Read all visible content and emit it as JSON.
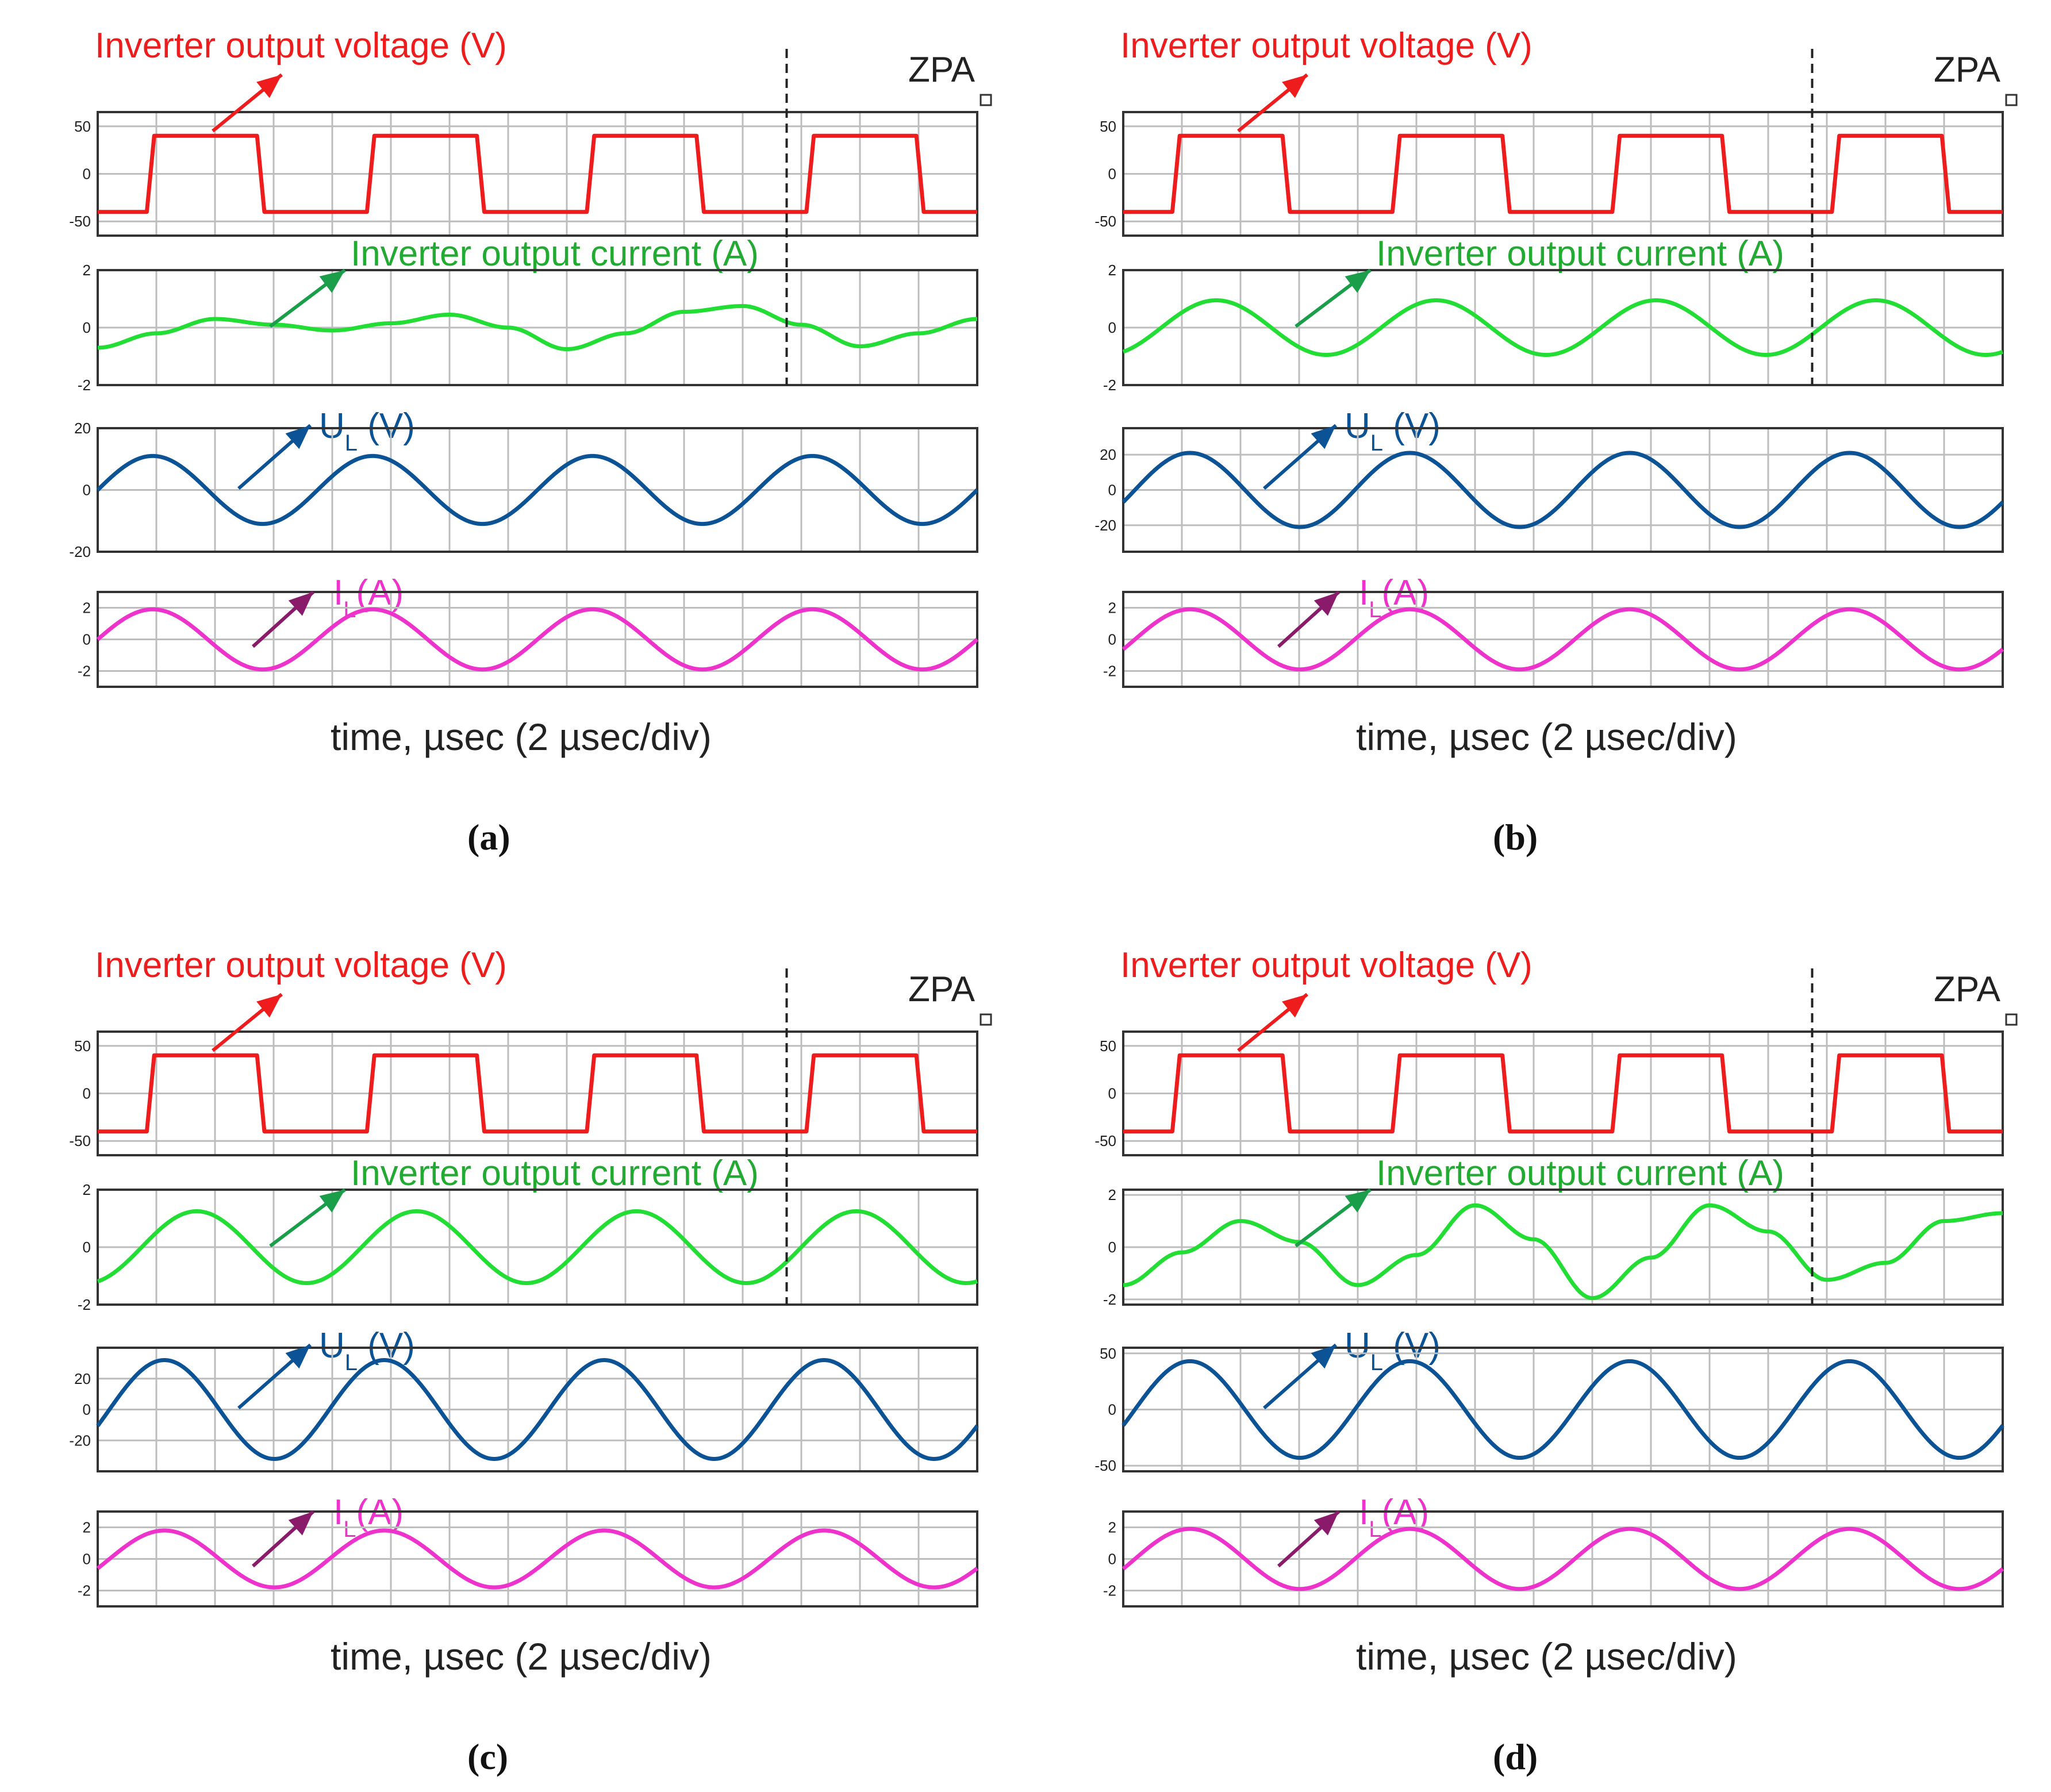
{
  "figure": {
    "panels": [
      {
        "caption": "(a)",
        "voltage_label": "Inverter output voltage (V)",
        "current_label": "Inverter output current (A)",
        "ul_label_main": "U",
        "ul_label_sub": "L",
        "ul_label_unit": " (V)",
        "il_label_main": "I",
        "il_label_sub": "L",
        "il_label_unit": "(A)",
        "zpa_label": "ZPA",
        "x_label": "time, µsec (2 µsec/div)"
      },
      {
        "caption": "(b)",
        "voltage_label": "Inverter output voltage (V)",
        "current_label": "Inverter output current (A)",
        "ul_label_main": "U",
        "ul_label_sub": "L",
        "ul_label_unit": " (V)",
        "il_label_main": "I",
        "il_label_sub": "L",
        "il_label_unit": "(A)",
        "zpa_label": "ZPA",
        "x_label": "time, µsec (2 µsec/div)"
      },
      {
        "caption": "(c)",
        "voltage_label": "Inverter output voltage (V)",
        "current_label": "Inverter output current (A)",
        "ul_label_main": "U",
        "ul_label_sub": "L",
        "ul_label_unit": " (V)",
        "il_label_main": "I",
        "il_label_sub": "L",
        "il_label_unit": "(A)",
        "zpa_label": "ZPA",
        "x_label": "time, µsec (2 µsec/div)"
      },
      {
        "caption": "(d)",
        "voltage_label": "Inverter output voltage (V)",
        "current_label": "Inverter output current (A)",
        "ul_label_main": "U",
        "ul_label_sub": "L",
        "ul_label_unit": " (V)",
        "il_label_main": "I",
        "il_label_sub": "L",
        "il_label_unit": "(A)",
        "zpa_label": "ZPA",
        "x_label": "time, µsec (2 µsec/div)"
      }
    ]
  },
  "chart_data": [
    {
      "type": "line",
      "panel": "(a)",
      "title": "",
      "xlabel": "time, µsec (2 µsec/div)",
      "x_range_us": [
        0,
        30
      ],
      "x_division_us": 2,
      "zpa_time_us": 23.5,
      "colors": {
        "voltage": "#ee1c1c",
        "current": "#22dd33",
        "ul": "#0b5394",
        "il": "#ee33cc"
      },
      "series": [
        {
          "name": "Inverter output voltage (V)",
          "kind": "square",
          "ylim": [
            -65,
            65
          ],
          "yticks": [
            -50,
            0,
            50
          ],
          "amplitude": 40,
          "period_us": 7.5,
          "high_start_us": 1.8,
          "duty": 0.5
        },
        {
          "name": "Inverter output current (A)",
          "kind": "sine",
          "ylim": [
            -2,
            2
          ],
          "yticks": [
            -2,
            0,
            2
          ],
          "points_x": [
            0,
            2,
            4,
            6,
            8,
            10,
            12,
            14,
            16,
            18,
            20,
            22,
            24,
            26,
            28,
            30
          ],
          "points_y": [
            -0.7,
            -0.2,
            0.3,
            0.1,
            -0.1,
            0.15,
            0.45,
            0.0,
            -0.75,
            -0.2,
            0.55,
            0.75,
            0.1,
            -0.65,
            -0.2,
            0.3
          ]
        },
        {
          "name": "U_L (V)",
          "kind": "sine",
          "ylim": [
            -20,
            20
          ],
          "yticks": [
            -20,
            0,
            20
          ],
          "amplitude": 11,
          "period_us": 7.5,
          "phase_zero_us": 0.0
        },
        {
          "name": "I_L (A)",
          "kind": "sine",
          "ylim": [
            -3,
            3
          ],
          "yticks": [
            -2,
            0,
            2
          ],
          "amplitude": 1.9,
          "period_us": 7.5,
          "phase_zero_us": 0.0
        }
      ]
    },
    {
      "type": "line",
      "panel": "(b)",
      "title": "",
      "xlabel": "time, µsec (2 µsec/div)",
      "x_range_us": [
        0,
        30
      ],
      "x_division_us": 2,
      "zpa_time_us": 23.5,
      "colors": {
        "voltage": "#ee1c1c",
        "current": "#22dd33",
        "ul": "#0b5394",
        "il": "#ee33cc"
      },
      "series": [
        {
          "name": "Inverter output voltage (V)",
          "kind": "square",
          "ylim": [
            -65,
            65
          ],
          "yticks": [
            -50,
            0,
            50
          ],
          "amplitude": 40,
          "period_us": 7.5,
          "high_start_us": 1.8,
          "duty": 0.5
        },
        {
          "name": "Inverter output current (A)",
          "kind": "sine",
          "ylim": [
            -2,
            2
          ],
          "yticks": [
            -2,
            0,
            2
          ],
          "amplitude": 0.95,
          "period_us": 7.5,
          "phase_zero_us": 1.3
        },
        {
          "name": "U_L (V)",
          "kind": "sine",
          "ylim": [
            -35,
            35
          ],
          "yticks": [
            -20,
            0,
            20
          ],
          "amplitude": 21,
          "period_us": 7.5,
          "phase_zero_us": 0.4
        },
        {
          "name": "I_L (A)",
          "kind": "sine",
          "ylim": [
            -3,
            3
          ],
          "yticks": [
            -2,
            0,
            2
          ],
          "amplitude": 1.9,
          "period_us": 7.5,
          "phase_zero_us": 0.4
        }
      ]
    },
    {
      "type": "line",
      "panel": "(c)",
      "title": "",
      "xlabel": "time, µsec (2 µsec/div)",
      "x_range_us": [
        0,
        30
      ],
      "x_division_us": 2,
      "zpa_time_us": 23.5,
      "colors": {
        "voltage": "#ee1c1c",
        "current": "#22dd33",
        "ul": "#0b5394",
        "il": "#ee33cc"
      },
      "series": [
        {
          "name": "Inverter output voltage (V)",
          "kind": "square",
          "ylim": [
            -65,
            65
          ],
          "yticks": [
            -50,
            0,
            50
          ],
          "amplitude": 40,
          "period_us": 7.5,
          "high_start_us": 1.8,
          "duty": 0.5
        },
        {
          "name": "Inverter output current (A)",
          "kind": "sine",
          "ylim": [
            -2,
            2
          ],
          "yticks": [
            -2,
            0,
            2
          ],
          "amplitude": 1.25,
          "period_us": 7.5,
          "phase_zero_us": 1.5
        },
        {
          "name": "U_L (V)",
          "kind": "sine",
          "ylim": [
            -40,
            40
          ],
          "yticks": [
            -20,
            0,
            20
          ],
          "amplitude": 32,
          "period_us": 7.5,
          "phase_zero_us": 0.4
        },
        {
          "name": "I_L (A)",
          "kind": "sine",
          "ylim": [
            -3,
            3
          ],
          "yticks": [
            -2,
            0,
            2
          ],
          "amplitude": 1.8,
          "period_us": 7.5,
          "phase_zero_us": 0.4
        }
      ]
    },
    {
      "type": "line",
      "panel": "(d)",
      "title": "",
      "xlabel": "time, µsec (2 µsec/div)",
      "x_range_us": [
        0,
        30
      ],
      "x_division_us": 2,
      "zpa_time_us": 23.5,
      "colors": {
        "voltage": "#ee1c1c",
        "current": "#22dd33",
        "ul": "#0b5394",
        "il": "#ee33cc"
      },
      "series": [
        {
          "name": "Inverter output voltage (V)",
          "kind": "square",
          "ylim": [
            -65,
            65
          ],
          "yticks": [
            -50,
            0,
            50
          ],
          "amplitude": 40,
          "period_us": 7.5,
          "high_start_us": 1.8,
          "duty": 0.5
        },
        {
          "name": "Inverter output current (A)",
          "kind": "sine",
          "ylim": [
            -2.2,
            2.2
          ],
          "yticks": [
            -2,
            0,
            2
          ],
          "points_x": [
            0,
            2,
            4,
            6,
            8,
            10,
            12,
            14,
            16,
            18,
            20,
            22,
            24,
            26,
            28,
            30
          ],
          "points_y": [
            -1.45,
            -0.2,
            1.0,
            0.2,
            -1.45,
            -0.3,
            1.6,
            0.3,
            -1.95,
            -0.4,
            1.6,
            0.6,
            -1.25,
            -0.6,
            1.0,
            1.3
          ]
        },
        {
          "name": "U_L (V)",
          "kind": "sine",
          "ylim": [
            -55,
            55
          ],
          "yticks": [
            -50,
            0,
            50
          ],
          "amplitude": 43,
          "period_us": 7.5,
          "phase_zero_us": 0.4
        },
        {
          "name": "I_L (A)",
          "kind": "sine",
          "ylim": [
            -3,
            3
          ],
          "yticks": [
            -2,
            0,
            2
          ],
          "amplitude": 1.9,
          "period_us": 7.5,
          "phase_zero_us": 0.4
        }
      ]
    }
  ]
}
